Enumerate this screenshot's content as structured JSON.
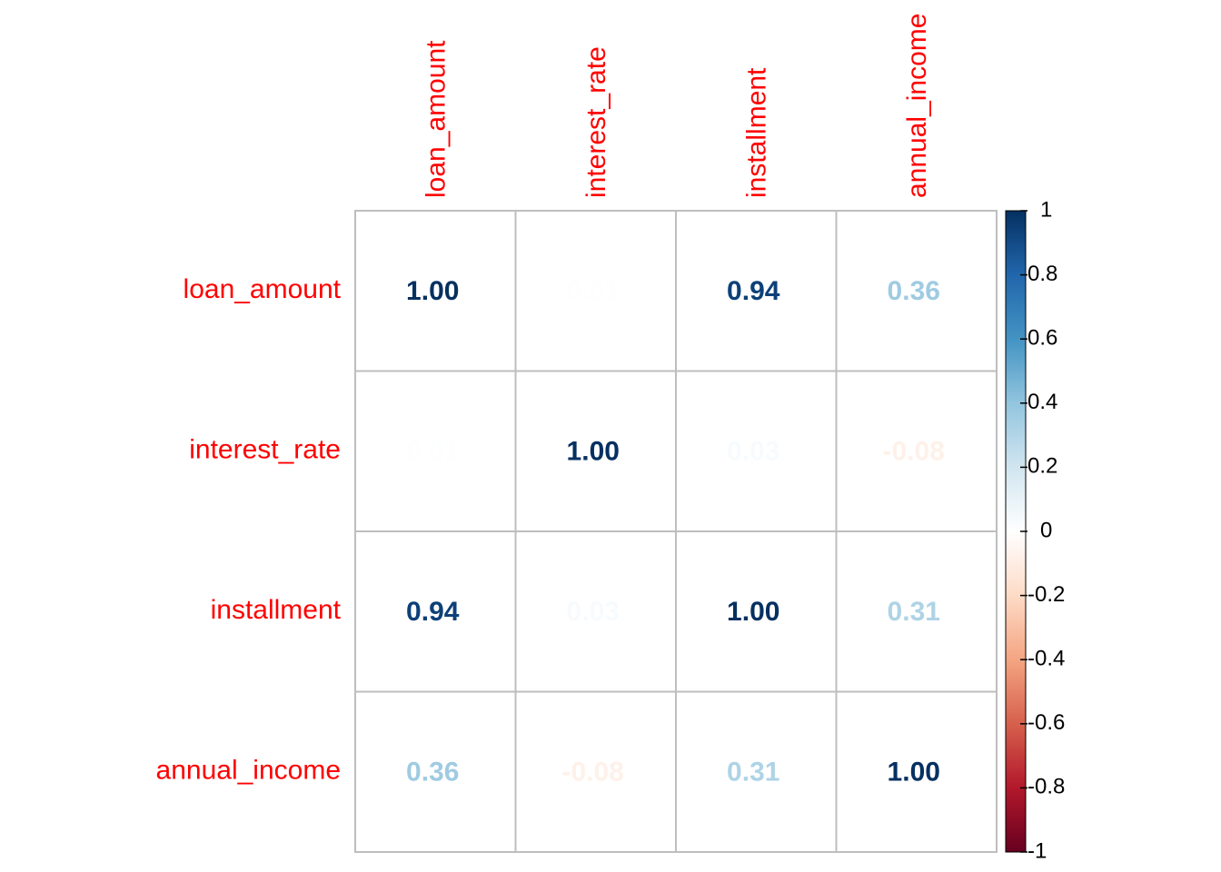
{
  "chart_data": {
    "type": "heatmap",
    "variables": [
      "loan_amount",
      "interest_rate",
      "installment",
      "annual_income"
    ],
    "matrix": [
      [
        1.0,
        0.01,
        0.94,
        0.36
      ],
      [
        0.01,
        1.0,
        0.03,
        -0.08
      ],
      [
        0.94,
        0.03,
        1.0,
        0.31
      ],
      [
        0.36,
        -0.08,
        0.31,
        1.0
      ]
    ],
    "cell_labels": [
      [
        "1.00",
        "0.01",
        "0.94",
        "0.36"
      ],
      [
        "0.01",
        "1.00",
        "0.03",
        "-0.08"
      ],
      [
        "0.94",
        "0.03",
        "1.00",
        "0.31"
      ],
      [
        "0.36",
        "-0.08",
        "0.31",
        "1.00"
      ]
    ],
    "colorbar": {
      "range": [
        -1,
        1
      ],
      "ticks": [
        1,
        0.8,
        0.6,
        0.4,
        0.2,
        0,
        -0.2,
        -0.4,
        -0.6,
        -0.8,
        -1
      ],
      "tick_labels": [
        "1",
        "0.8",
        "0.6",
        "0.4",
        "0.2",
        "0",
        "-0.2",
        "-0.4",
        "-0.6",
        "-0.8",
        "-1"
      ]
    },
    "label_color": "#ff0000",
    "grid": true,
    "colors": {
      "low": "#67001f",
      "mid": "#ffffff",
      "high": "#053061",
      "grid": "#bebebe"
    }
  }
}
